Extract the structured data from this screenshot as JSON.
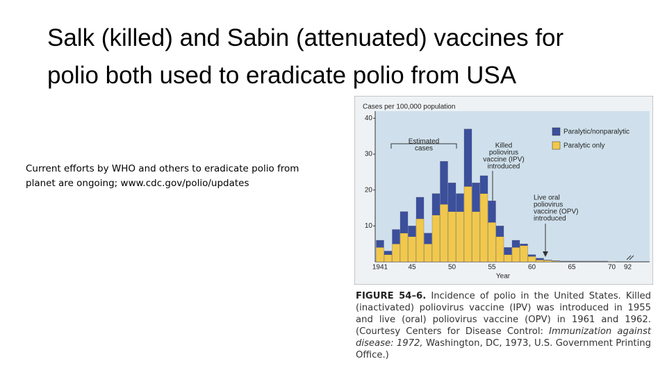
{
  "slide": {
    "title_lines": [
      "Salk (killed) and Sabin (attenuated) vaccines for",
      "polio both used to eradicate polio from USA"
    ],
    "note_lines": [
      "Current efforts by WHO and others to eradicate polio from",
      "planet are ongoing; www.cdc.gov/polio/updates"
    ]
  },
  "chart_data": {
    "type": "stacked-bar",
    "ylabel": "Cases per 100,000 population",
    "xlabel": "Year",
    "categories": [
      "1941",
      null,
      null,
      null,
      "45",
      null,
      null,
      null,
      null,
      "50",
      null,
      null,
      null,
      null,
      "55",
      null,
      null,
      null,
      null,
      "60",
      null,
      null,
      null,
      null,
      "65",
      null,
      null,
      null,
      null,
      "70",
      "92"
    ],
    "series": [
      {
        "name": "Paralytic/nonparalytic",
        "color": "#3b4f9c",
        "values": [
          2,
          1,
          4,
          6,
          3,
          6,
          3,
          6,
          12,
          8,
          5,
          16,
          8,
          5,
          6,
          3,
          2,
          2,
          0.5,
          0.5,
          0.5,
          0.1,
          0.1,
          0.1,
          0.1,
          0.1,
          0.1,
          0.1,
          0.1,
          0,
          0
        ]
      },
      {
        "name": "Paralytic only",
        "color": "#f2c84b",
        "values": [
          4,
          2,
          5,
          8,
          7,
          12,
          5,
          13,
          16,
          14,
          14,
          21,
          14,
          19,
          11,
          7,
          2,
          4,
          4.5,
          1.5,
          0.5,
          0.4,
          0.2,
          0.1,
          0.1,
          0.1,
          0.1,
          0.1,
          0.1,
          0.1,
          0
        ]
      }
    ],
    "ylim": [
      0,
      42
    ],
    "yticks": [
      10,
      20,
      30,
      40
    ],
    "annotations": [
      {
        "lines": [
          "Estimated",
          "cases"
        ]
      },
      {
        "lines": [
          "Killed",
          "poliovirus",
          "vaccine (IPV)",
          "introduced"
        ]
      },
      {
        "lines": [
          "Live oral",
          "poliovirus",
          "vaccine (OPV)",
          "introduced"
        ]
      }
    ],
    "caption": {
      "label": "FIGURE 54–6.",
      "parts": [
        "Incidence of polio in the United States. Killed (inactivated) poliovirus vaccine (IPV) was introduced in 1955 and live (oral) poliovirus vaccine (OPV) in 1961 and 1962. (Courtesy Centers for Disease Control: ",
        "Immunization against disease: 1972,",
        " Washington, DC, 1973, U.S. Government Printing Office.)"
      ]
    }
  }
}
